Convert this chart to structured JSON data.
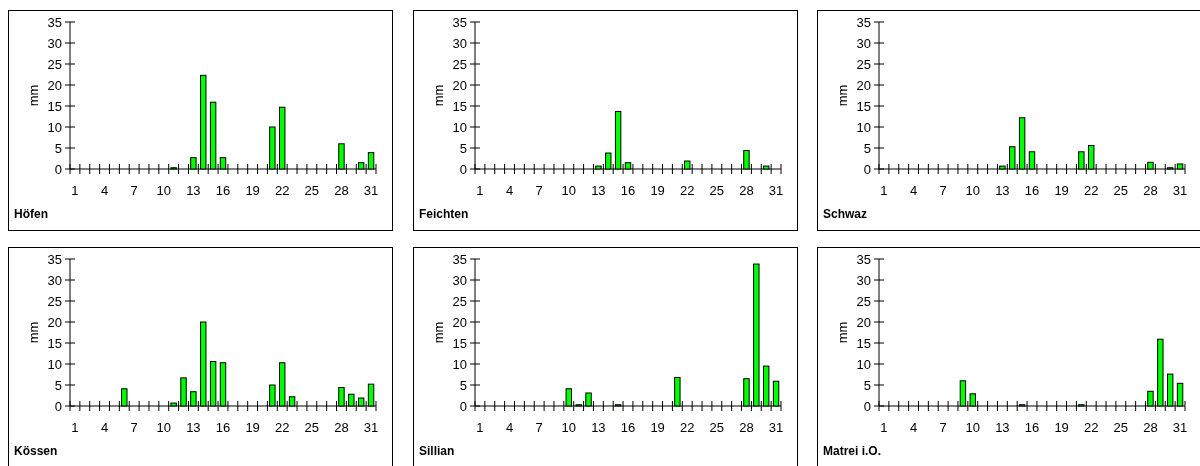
{
  "chart_data": [
    {
      "type": "bar",
      "title": "Höfen",
      "ylabel": "mm",
      "color": "#00ff00",
      "ylim": [
        0,
        35
      ],
      "yticks": [
        0,
        5,
        10,
        15,
        20,
        25,
        30,
        35
      ],
      "categories": [
        "1",
        null,
        null,
        "4",
        null,
        null,
        "7",
        null,
        null,
        "10",
        null,
        null,
        "13",
        null,
        null,
        "16",
        null,
        null,
        "19",
        null,
        null,
        "22",
        null,
        null,
        "25",
        null,
        null,
        "28",
        null,
        null,
        "31"
      ],
      "values": [
        0,
        0,
        0,
        0,
        0,
        0,
        0,
        0,
        0,
        0,
        0.3,
        0,
        2.7,
        22.3,
        15.9,
        2.7,
        0,
        0,
        0,
        0,
        10,
        14.7,
        0,
        0,
        0,
        0,
        0,
        6,
        0,
        1.5,
        3.9
      ]
    },
    {
      "type": "bar",
      "title": "Feichten",
      "ylabel": "mm",
      "color": "#00ff00",
      "ylim": [
        0,
        35
      ],
      "yticks": [
        0,
        5,
        10,
        15,
        20,
        25,
        30,
        35
      ],
      "categories": [
        "1",
        null,
        null,
        "4",
        null,
        null,
        "7",
        null,
        null,
        "10",
        null,
        null,
        "13",
        null,
        null,
        "16",
        null,
        null,
        "19",
        null,
        null,
        "22",
        null,
        null,
        "25",
        null,
        null,
        "28",
        null,
        null,
        "31"
      ],
      "values": [
        0,
        0,
        0,
        0,
        0,
        0,
        0,
        0,
        0,
        0,
        0,
        0,
        0.7,
        3.8,
        13.7,
        1.5,
        0,
        0,
        0,
        0,
        0,
        1.9,
        0,
        0,
        0,
        0,
        0,
        4.4,
        0,
        0.7,
        0
      ]
    },
    {
      "type": "bar",
      "title": "Schwaz",
      "ylabel": "mm",
      "color": "#00ff00",
      "ylim": [
        0,
        35
      ],
      "yticks": [
        0,
        5,
        10,
        15,
        20,
        25,
        30,
        35
      ],
      "categories": [
        "1",
        null,
        null,
        "4",
        null,
        null,
        "7",
        null,
        null,
        "10",
        null,
        null,
        "13",
        null,
        null,
        "16",
        null,
        null,
        "19",
        null,
        null,
        "22",
        null,
        null,
        "25",
        null,
        null,
        "28",
        null,
        null,
        "31"
      ],
      "values": [
        0,
        0,
        0,
        0,
        0,
        0,
        0,
        0,
        0,
        0,
        0,
        0,
        0.7,
        5.3,
        12.2,
        4.1,
        0,
        0,
        0,
        0,
        4.1,
        5.6,
        0,
        0,
        0,
        0,
        0,
        1.6,
        0,
        0.3,
        1.2
      ]
    },
    {
      "type": "bar",
      "title": "Kössen",
      "ylabel": "mm",
      "color": "#00ff00",
      "ylim": [
        0,
        35
      ],
      "yticks": [
        0,
        5,
        10,
        15,
        20,
        25,
        30,
        35
      ],
      "categories": [
        "1",
        null,
        null,
        "4",
        null,
        null,
        "7",
        null,
        null,
        "10",
        null,
        null,
        "13",
        null,
        null,
        "16",
        null,
        null,
        "19",
        null,
        null,
        "22",
        null,
        null,
        "25",
        null,
        null,
        "28",
        null,
        null,
        "31"
      ],
      "values": [
        0,
        0,
        0,
        0,
        0,
        4.1,
        0,
        0,
        0,
        0,
        0.7,
        6.7,
        3.4,
        20,
        10.6,
        10.3,
        0,
        0,
        0,
        0,
        5,
        10.3,
        2.2,
        0,
        0,
        0,
        0,
        4.4,
        2.8,
        1.9,
        5.2
      ]
    },
    {
      "type": "bar",
      "title": "Sillian",
      "ylabel": "mm",
      "color": "#00ff00",
      "ylim": [
        0,
        35
      ],
      "yticks": [
        0,
        5,
        10,
        15,
        20,
        25,
        30,
        35
      ],
      "categories": [
        "1",
        null,
        null,
        "4",
        null,
        null,
        "7",
        null,
        null,
        "10",
        null,
        null,
        "13",
        null,
        null,
        "16",
        null,
        null,
        "19",
        null,
        null,
        "22",
        null,
        null,
        "25",
        null,
        null,
        "28",
        null,
        null,
        "31"
      ],
      "values": [
        0,
        0,
        0,
        0,
        0,
        0,
        0,
        0,
        0,
        4.1,
        0.3,
        3.1,
        0,
        0,
        0.3,
        0,
        0,
        0,
        0,
        0,
        6.8,
        0,
        0,
        0,
        0,
        0,
        0,
        6.5,
        33.8,
        9.5,
        5.9
      ]
    },
    {
      "type": "bar",
      "title": "Matrei i.O.",
      "ylabel": "mm",
      "color": "#00ff00",
      "ylim": [
        0,
        35
      ],
      "yticks": [
        0,
        5,
        10,
        15,
        20,
        25,
        30,
        35
      ],
      "categories": [
        "1",
        null,
        null,
        "4",
        null,
        null,
        "7",
        null,
        null,
        "10",
        null,
        null,
        "13",
        null,
        null,
        "16",
        null,
        null,
        "19",
        null,
        null,
        "22",
        null,
        null,
        "25",
        null,
        null,
        "28",
        null,
        null,
        "31"
      ],
      "values": [
        0,
        0,
        0,
        0,
        0,
        0,
        0,
        0,
        6,
        2.9,
        0,
        0,
        0,
        0,
        0.3,
        0,
        0,
        0,
        0,
        0,
        0.3,
        0,
        0,
        0,
        0,
        0,
        0,
        3.5,
        15.9,
        7.6,
        5.4
      ]
    }
  ]
}
